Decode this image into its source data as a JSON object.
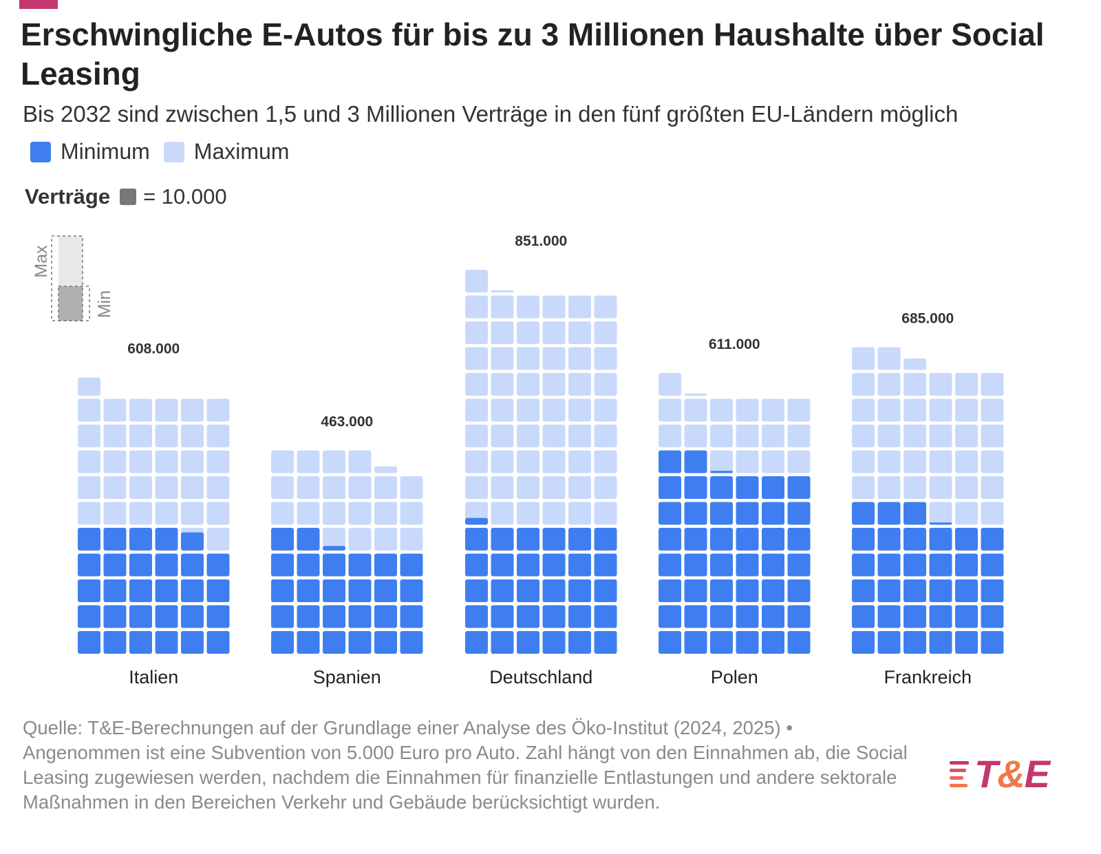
{
  "header": {
    "title": "Erschwingliche E-Autos für bis zu 3 Millionen Haushalte über Social Leasing",
    "subtitle": "Bis 2032 sind zwischen 1,5 und 3 Millionen Verträge in den fünf größten EU-Ländern möglich"
  },
  "legend": {
    "min_label": "Minimum",
    "max_label": "Maximum",
    "unit_label": "Verträge",
    "unit_value": "= 10.000"
  },
  "key": {
    "max_label": "Max",
    "min_label": "Min"
  },
  "colors": {
    "minimum": "#3f7ef0",
    "maximum": "#c9d9fb",
    "key_max": "#e8e8e8",
    "key_min": "#b0b0b0",
    "accent": "#c4376f",
    "accent2": "#f0784b"
  },
  "chart_data": {
    "type": "waffle",
    "unit_value": 10000,
    "columns_per_country": 6,
    "categories": [
      "Italien",
      "Spanien",
      "Deutschland",
      "Polen",
      "Frankreich"
    ],
    "series": [
      {
        "name": "Minimum",
        "values": [
          288000,
          262000,
          303000,
          441000,
          331000
        ]
      },
      {
        "name": "Maximum",
        "values": [
          608000,
          463000,
          851000,
          611000,
          685000
        ]
      }
    ],
    "value_labels": [
      "608.000",
      "463.000",
      "851.000",
      "611.000",
      "685.000"
    ]
  },
  "footer": {
    "source": "Quelle: T&E-Berechnungen auf der Grundlage einer Analyse des Öko-Institut (2024, 2025)  •",
    "note": "Angenommen ist eine Subvention von 5.000 Euro pro Auto. Zahl hängt von den Einnahmen ab, die Social Leasing zugewiesen werden, nachdem die Einnahmen für finanzielle Entlastungen und andere sektorale Maßnahmen in den Bereichen Verkehr und Gebäude berücksichtigt wurden."
  },
  "logo": {
    "t": "T",
    "amp": "&",
    "e": "E"
  }
}
